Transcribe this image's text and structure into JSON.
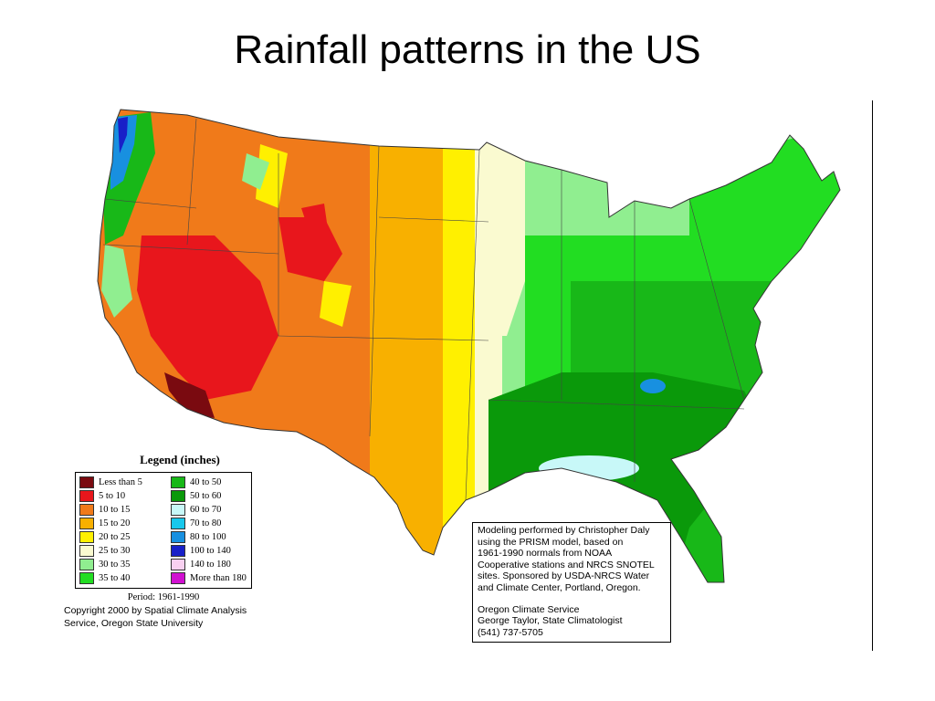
{
  "slide": {
    "title": "Rainfall patterns in the US"
  },
  "map": {
    "subject": "Average annual precipitation, contiguous United States",
    "palette": {
      "less_than_5": "#7a0a10",
      "5_to_10": "#e8161c",
      "10_to_15": "#f07a1a",
      "15_to_20": "#f8b000",
      "20_to_25": "#fff000",
      "25_to_30": "#fafad0",
      "30_to_35": "#90ee90",
      "35_to_40": "#22dd22",
      "40_to_50": "#18b818",
      "50_to_60": "#0a990a",
      "60_to_70": "#c8f8f8",
      "70_to_80": "#18c8ec",
      "80_to_100": "#1890e0",
      "100_to_140": "#1820c8",
      "140_to_180": "#f8d0f0",
      "more_than_180": "#d010d0"
    }
  },
  "legend": {
    "title": "Legend (inches)",
    "items": [
      {
        "label": "Less than 5",
        "color": "#7a0a10"
      },
      {
        "label": "5 to 10",
        "color": "#e8161c"
      },
      {
        "label": "10 to 15",
        "color": "#f07a1a"
      },
      {
        "label": "15 to 20",
        "color": "#f8b000"
      },
      {
        "label": "20 to 25",
        "color": "#fff000"
      },
      {
        "label": "25 to 30",
        "color": "#fafad0"
      },
      {
        "label": "30 to 35",
        "color": "#90ee90"
      },
      {
        "label": "35 to 40",
        "color": "#22dd22"
      },
      {
        "label": "40 to 50",
        "color": "#18b818"
      },
      {
        "label": "50 to 60",
        "color": "#0a990a"
      },
      {
        "label": "60 to 70",
        "color": "#c8f8f8"
      },
      {
        "label": "70 to 80",
        "color": "#18c8ec"
      },
      {
        "label": "80 to 100",
        "color": "#1890e0"
      },
      {
        "label": "100 to 140",
        "color": "#1820c8"
      },
      {
        "label": "140 to 180",
        "color": "#f8d0f0"
      },
      {
        "label": "More than 180",
        "color": "#d010d0"
      }
    ],
    "period": "Period: 1961-1990"
  },
  "copyright": {
    "line1": "Copyright 2000 by Spatial Climate Analysis",
    "line2": "Service, Oregon State University"
  },
  "credit": {
    "lines": [
      "Modeling performed by Christopher Daly",
      "using the PRISM model, based on",
      "1961-1990 normals from NOAA",
      "Cooperative stations and NRCS SNOTEL",
      "sites.  Sponsored by USDA-NRCS Water",
      "and Climate Center, Portland, Oregon."
    ],
    "org_lines": [
      "Oregon Climate Service",
      "George Taylor, State Climatologist",
      "(541) 737-5705"
    ]
  }
}
